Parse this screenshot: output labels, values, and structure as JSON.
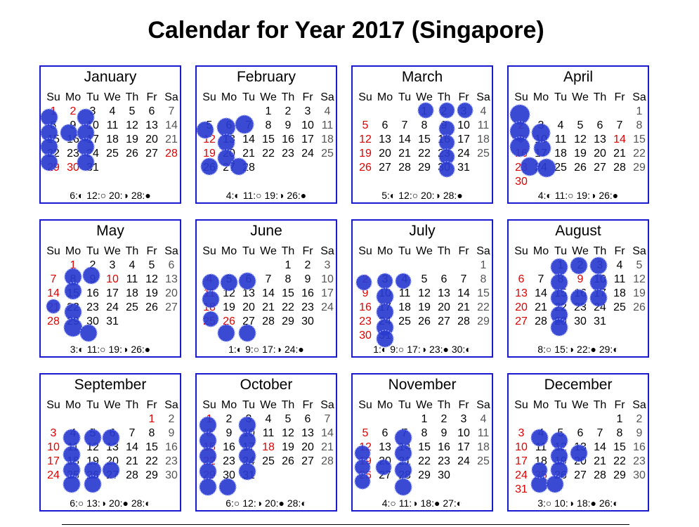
{
  "title": "Calendar for Year 2017 (Singapore)",
  "weekdays": [
    "Su",
    "Mo",
    "Tu",
    "We",
    "Th",
    "Fr",
    "Sa"
  ],
  "colors": {
    "border": "#1a1ad0",
    "holiday": "#e00000",
    "saturday": "#555555",
    "scribble": "#2a3bd0"
  },
  "moon_icons": [
    "first-quarter-icon",
    "full-moon-icon",
    "last-quarter-icon",
    "new-moon-icon"
  ],
  "months": [
    {
      "name": "January",
      "year": 2017,
      "index": 0,
      "red": [
        1,
        2,
        28,
        29,
        30
      ],
      "moon": "6:◐ 12:○ 20:◑ 28:●"
    },
    {
      "name": "February",
      "year": 2017,
      "index": 1,
      "red": [
        12,
        19
      ],
      "moon": "4:◐ 11:○ 19:◑ 26:●"
    },
    {
      "name": "March",
      "year": 2017,
      "index": 2,
      "red": [
        5,
        12,
        19,
        26
      ],
      "moon": "5:◐ 12:○ 20:◑ 28:●"
    },
    {
      "name": "April",
      "year": 2017,
      "index": 3,
      "red": [
        2,
        9,
        14,
        16,
        23,
        30
      ],
      "moon": "4:◐ 11:○ 19:◑ 26:●"
    },
    {
      "name": "May",
      "year": 2017,
      "index": 4,
      "red": [
        1,
        7,
        10,
        14,
        21,
        28
      ],
      "moon": "3:◐ 11:○ 19:◑ 26:●"
    },
    {
      "name": "June",
      "year": 2017,
      "index": 5,
      "red": [
        4,
        11,
        18,
        25,
        26
      ],
      "moon": "1:◐ 9:○ 17:◑ 24:●"
    },
    {
      "name": "July",
      "year": 2017,
      "index": 6,
      "red": [
        2,
        9,
        16,
        23,
        30
      ],
      "moon": "1:◐ 9:○ 17:◑ 23:● 30:◐"
    },
    {
      "name": "August",
      "year": 2017,
      "index": 7,
      "red": [
        6,
        9,
        13,
        20,
        27
      ],
      "moon": "8:○ 15:◑ 22:● 29:◐"
    },
    {
      "name": "September",
      "year": 2017,
      "index": 8,
      "red": [
        1,
        3,
        10,
        17,
        24
      ],
      "moon": "6:○ 13:◑ 20:● 28:◐"
    },
    {
      "name": "October",
      "year": 2017,
      "index": 9,
      "red": [
        1,
        8,
        15,
        18,
        22,
        29
      ],
      "moon": "6:○ 12:◑ 20:● 28:◐"
    },
    {
      "name": "November",
      "year": 2017,
      "index": 10,
      "red": [
        5,
        12,
        19,
        26
      ],
      "moon": "4:○ 11:◑ 18:● 27:◐"
    },
    {
      "name": "December",
      "year": 2017,
      "index": 11,
      "red": [
        3,
        10,
        17,
        24,
        25,
        31
      ],
      "moon": "3:○ 10:◑ 18:● 26:◐"
    }
  ]
}
